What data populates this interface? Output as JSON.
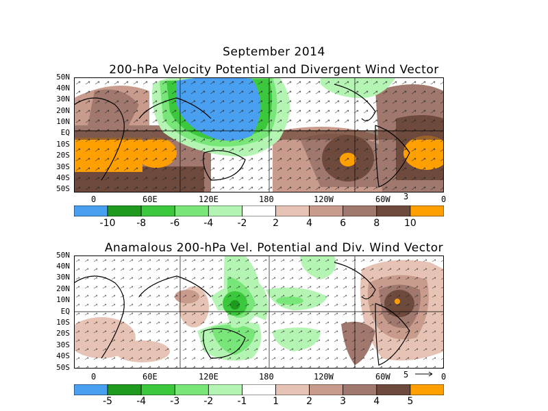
{
  "panel1": {
    "title_line1": "September 2014",
    "title_line2": "200-hPa Velocity Potential and Divergent Wind Vector",
    "lat_labels": [
      "50N",
      "40N",
      "30N",
      "20N",
      "10N",
      "EQ",
      "10S",
      "20S",
      "30S",
      "40S",
      "50S"
    ],
    "lon_labels": [
      "0",
      "60E",
      "120E",
      "180",
      "120W",
      "60W",
      "0"
    ],
    "vector_ref": "3",
    "colorbar": {
      "colors": [
        "#4aa0f0",
        "#1e9a1e",
        "#3cc83c",
        "#78e678",
        "#b4f5b4",
        "#ffffff",
        "#e6c3b4",
        "#c89b8c",
        "#a0786e",
        "#6e4a3c",
        "#ff9f00"
      ],
      "labels": [
        "-10",
        "-8",
        "-6",
        "-4",
        "-2",
        "2",
        "4",
        "6",
        "8",
        "10"
      ]
    }
  },
  "panel2": {
    "title": "Anamalous 200-hPa Vel. Potential and Div. Wind Vector",
    "lat_labels": [
      "50N",
      "40N",
      "30N",
      "20N",
      "10N",
      "EQ",
      "10S",
      "20S",
      "30S",
      "40S",
      "50S"
    ],
    "lon_labels": [
      "0",
      "60E",
      "120E",
      "180",
      "120W",
      "60W",
      "0"
    ],
    "vector_ref": "5",
    "colorbar": {
      "colors": [
        "#4aa0f0",
        "#1e9a1e",
        "#3cc83c",
        "#78e678",
        "#b4f5b4",
        "#ffffff",
        "#e6c3b4",
        "#c89b8c",
        "#a0786e",
        "#6e4a3c",
        "#ff9f00"
      ],
      "labels": [
        "-5",
        "-4",
        "-3",
        "-2",
        "-1",
        "1",
        "2",
        "3",
        "4",
        "5"
      ]
    }
  }
}
